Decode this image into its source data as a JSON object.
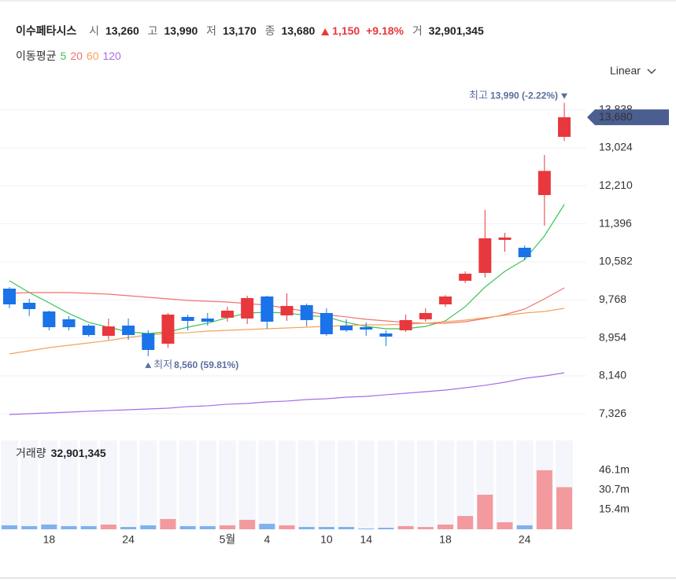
{
  "header": {
    "name": "이수페타시스",
    "open_label": "시",
    "open": "13,260",
    "high_label": "고",
    "high": "13,990",
    "low_label": "저",
    "low": "13,170",
    "close_label": "종",
    "close": "13,680",
    "change": "1,150",
    "change_pct": "+9.18%",
    "volume_label": "거",
    "volume": "32,901,345",
    "ma_label": "이동평균",
    "scale": "Linear"
  },
  "chart_data": {
    "type": "candlestick",
    "categories": [
      null,
      null,
      "18",
      null,
      null,
      null,
      "24",
      null,
      null,
      null,
      null,
      "5월",
      null,
      "4",
      null,
      null,
      "10",
      null,
      "14",
      null,
      null,
      null,
      "18",
      null,
      null,
      null,
      "24",
      null,
      null
    ],
    "open": [
      10008,
      9705,
      9519,
      9351,
      9216,
      8997,
      9216,
      9048,
      8828,
      9402,
      9368,
      9385,
      9368,
      9840,
      9435,
      9654,
      9486,
      9216,
      9182,
      9048,
      9115,
      9351,
      9671,
      10177,
      10345,
      11053,
      10884,
      12013,
      13260
    ],
    "high": [
      10042,
      9789,
      9536,
      9418,
      9250,
      9368,
      9368,
      9115,
      9486,
      9452,
      9486,
      9620,
      9856,
      9856,
      9907,
      9688,
      9587,
      9351,
      9284,
      9115,
      9452,
      9587,
      9873,
      10379,
      11693,
      11204,
      10935,
      12873,
      13990
    ],
    "low": [
      9587,
      9418,
      9115,
      9115,
      8980,
      8913,
      8913,
      8560,
      8744,
      9115,
      9216,
      9300,
      9250,
      9149,
      9317,
      9199,
      8997,
      9082,
      8997,
      8778,
      9082,
      9300,
      9620,
      10126,
      10244,
      10800,
      10615,
      11356,
      13170
    ],
    "close": [
      9671,
      9570,
      9182,
      9182,
      9014,
      9199,
      9014,
      8694,
      9452,
      9317,
      9300,
      9536,
      9806,
      9300,
      9637,
      9334,
      9031,
      9115,
      9132,
      8980,
      9334,
      9486,
      9840,
      10328,
      11086,
      11103,
      10682,
      12530,
      13680
    ],
    "up_color": "#e8383d",
    "down_color": "#1a73e8",
    "series": [
      {
        "name": "5",
        "color": "#3cc35a",
        "values": [
          10177,
          9924,
          9705,
          9476,
          9284,
          9182,
          9081,
          9048,
          9081,
          9182,
          9267,
          9385,
          9486,
          9503,
          9486,
          9435,
          9402,
          9284,
          9199,
          9149,
          9149,
          9199,
          9317,
          9621,
          10042,
          10379,
          10632,
          11137,
          11811
        ]
      },
      {
        "name": "20",
        "color": "#f0726f",
        "values": [
          9907,
          9924,
          9924,
          9924,
          9907,
          9890,
          9856,
          9823,
          9789,
          9755,
          9738,
          9722,
          9688,
          9654,
          9587,
          9519,
          9452,
          9402,
          9351,
          9317,
          9284,
          9267,
          9267,
          9300,
          9368,
          9452,
          9570,
          9789,
          10025
        ]
      },
      {
        "name": "60",
        "color": "#f5a35a",
        "values": [
          8609,
          8677,
          8744,
          8795,
          8845,
          8896,
          8963,
          9014,
          9048,
          9065,
          9098,
          9115,
          9132,
          9149,
          9166,
          9182,
          9199,
          9216,
          9233,
          9233,
          9250,
          9267,
          9300,
          9334,
          9385,
          9435,
          9486,
          9519,
          9587
        ]
      },
      {
        "name": "120",
        "color": "#a66de8",
        "values": [
          7312,
          7329,
          7346,
          7363,
          7380,
          7397,
          7413,
          7430,
          7447,
          7481,
          7498,
          7532,
          7548,
          7582,
          7599,
          7632,
          7649,
          7683,
          7700,
          7734,
          7767,
          7801,
          7834,
          7885,
          7936,
          8003,
          8087,
          8138,
          8205
        ]
      }
    ],
    "ylim": [
      6958,
      14423
    ],
    "yticks": [
      {
        "value": 7326,
        "label": "7,326"
      },
      {
        "value": 8140,
        "label": "8,140"
      },
      {
        "value": 8954,
        "label": "8,954"
      },
      {
        "value": 9768,
        "label": "9,768"
      },
      {
        "value": 10582,
        "label": "10,582"
      },
      {
        "value": 11396,
        "label": "11,396"
      },
      {
        "value": 12210,
        "label": "12,210"
      },
      {
        "value": 13024,
        "label": "13,024"
      },
      {
        "value": 13838,
        "label": "13,838"
      }
    ],
    "grid": true,
    "last_label": "13,680",
    "high_annotation": {
      "label": "최고",
      "text": "13,990 (-2.22%)"
    },
    "low_annotation": {
      "label": "최저",
      "text": "8,560 (59.81%)"
    },
    "volume": {
      "label": "거래량",
      "total": "32,901,345",
      "values": [
        3100000,
        2500000,
        3700000,
        2500000,
        2500000,
        3700000,
        1800000,
        3100000,
        8000000,
        2500000,
        2500000,
        3100000,
        7400000,
        4300000,
        3100000,
        1800000,
        1800000,
        1800000,
        600000,
        1200000,
        2500000,
        1800000,
        3700000,
        10400000,
        27000000,
        5500000,
        3100000,
        46100000,
        32901345
      ],
      "up_color": "#f29a9d",
      "down_color": "#7fb1ef",
      "ylim": [
        0,
        69400000
      ],
      "yticks": [
        {
          "value": 15400000,
          "label": "15.4m"
        },
        {
          "value": 30700000,
          "label": "30.7m"
        },
        {
          "value": 46100000,
          "label": "46.1m"
        }
      ]
    }
  }
}
